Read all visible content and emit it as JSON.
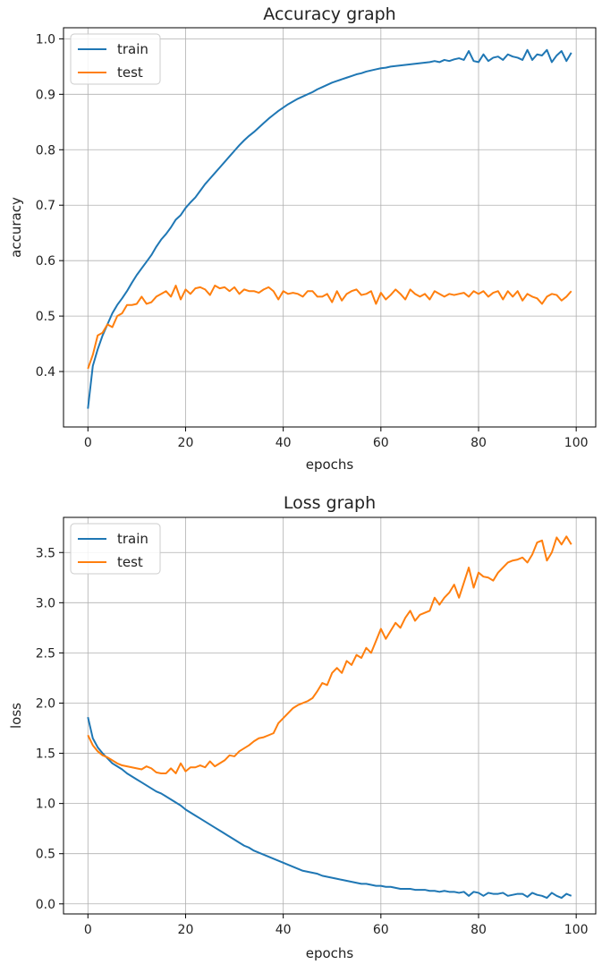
{
  "chart_data": [
    {
      "type": "line",
      "title": "Accuracy graph",
      "xlabel": "epochs",
      "ylabel": "accuracy",
      "xlim": [
        -5,
        104
      ],
      "ylim": [
        0.3,
        1.02
      ],
      "xticks": [
        0,
        20,
        40,
        60,
        80,
        100
      ],
      "xtick_labels": [
        "0",
        "20",
        "40",
        "60",
        "80",
        "100"
      ],
      "yticks": [
        0.4,
        0.5,
        0.6,
        0.7,
        0.8,
        0.9,
        1.0
      ],
      "ytick_labels": [
        "0.4",
        "0.5",
        "0.6",
        "0.7",
        "0.8",
        "0.9",
        "1.0"
      ],
      "grid": true,
      "legend_position": "top-left",
      "series": [
        {
          "name": "train",
          "color": "#1f77b4",
          "x": [
            0,
            1,
            2,
            3,
            4,
            5,
            6,
            7,
            8,
            9,
            10,
            11,
            12,
            13,
            14,
            15,
            16,
            17,
            18,
            19,
            20,
            21,
            22,
            23,
            24,
            25,
            26,
            27,
            28,
            29,
            30,
            31,
            32,
            33,
            34,
            35,
            36,
            37,
            38,
            39,
            40,
            41,
            42,
            43,
            44,
            45,
            46,
            47,
            48,
            49,
            50,
            51,
            52,
            53,
            54,
            55,
            56,
            57,
            58,
            59,
            60,
            61,
            62,
            63,
            64,
            65,
            66,
            67,
            68,
            69,
            70,
            71,
            72,
            73,
            74,
            75,
            76,
            77,
            78,
            79,
            80,
            81,
            82,
            83,
            84,
            85,
            86,
            87,
            88,
            89,
            90,
            91,
            92,
            93,
            94,
            95,
            96,
            97,
            98,
            99
          ],
          "values": [
            0.333,
            0.41,
            0.44,
            0.465,
            0.485,
            0.505,
            0.52,
            0.532,
            0.545,
            0.56,
            0.574,
            0.586,
            0.598,
            0.61,
            0.625,
            0.638,
            0.648,
            0.66,
            0.674,
            0.682,
            0.695,
            0.705,
            0.714,
            0.726,
            0.738,
            0.748,
            0.758,
            0.768,
            0.778,
            0.788,
            0.798,
            0.808,
            0.817,
            0.825,
            0.832,
            0.84,
            0.848,
            0.856,
            0.863,
            0.87,
            0.876,
            0.882,
            0.887,
            0.892,
            0.896,
            0.9,
            0.904,
            0.909,
            0.913,
            0.917,
            0.921,
            0.924,
            0.927,
            0.93,
            0.933,
            0.936,
            0.938,
            0.941,
            0.943,
            0.945,
            0.947,
            0.948,
            0.95,
            0.951,
            0.952,
            0.953,
            0.954,
            0.955,
            0.956,
            0.957,
            0.958,
            0.96,
            0.958,
            0.962,
            0.96,
            0.963,
            0.965,
            0.962,
            0.978,
            0.96,
            0.958,
            0.972,
            0.96,
            0.966,
            0.968,
            0.962,
            0.972,
            0.968,
            0.966,
            0.962,
            0.98,
            0.962,
            0.972,
            0.97,
            0.98,
            0.958,
            0.97,
            0.978,
            0.96,
            0.975
          ]
        },
        {
          "name": "test",
          "color": "#ff7f0e",
          "x": [
            0,
            1,
            2,
            3,
            4,
            5,
            6,
            7,
            8,
            9,
            10,
            11,
            12,
            13,
            14,
            15,
            16,
            17,
            18,
            19,
            20,
            21,
            22,
            23,
            24,
            25,
            26,
            27,
            28,
            29,
            30,
            31,
            32,
            33,
            34,
            35,
            36,
            37,
            38,
            39,
            40,
            41,
            42,
            43,
            44,
            45,
            46,
            47,
            48,
            49,
            50,
            51,
            52,
            53,
            54,
            55,
            56,
            57,
            58,
            59,
            60,
            61,
            62,
            63,
            64,
            65,
            66,
            67,
            68,
            69,
            70,
            71,
            72,
            73,
            74,
            75,
            76,
            77,
            78,
            79,
            80,
            81,
            82,
            83,
            84,
            85,
            86,
            87,
            88,
            89,
            90,
            91,
            92,
            93,
            94,
            95,
            96,
            97,
            98,
            99
          ],
          "values": [
            0.405,
            0.43,
            0.465,
            0.47,
            0.485,
            0.48,
            0.5,
            0.505,
            0.52,
            0.52,
            0.522,
            0.535,
            0.522,
            0.525,
            0.535,
            0.54,
            0.545,
            0.535,
            0.555,
            0.53,
            0.548,
            0.54,
            0.55,
            0.552,
            0.548,
            0.538,
            0.555,
            0.55,
            0.552,
            0.545,
            0.552,
            0.54,
            0.548,
            0.545,
            0.545,
            0.542,
            0.548,
            0.552,
            0.545,
            0.53,
            0.545,
            0.54,
            0.542,
            0.54,
            0.535,
            0.545,
            0.545,
            0.535,
            0.535,
            0.54,
            0.525,
            0.545,
            0.528,
            0.54,
            0.545,
            0.548,
            0.538,
            0.54,
            0.545,
            0.522,
            0.542,
            0.53,
            0.538,
            0.548,
            0.54,
            0.53,
            0.548,
            0.54,
            0.535,
            0.54,
            0.53,
            0.545,
            0.54,
            0.535,
            0.54,
            0.538,
            0.54,
            0.542,
            0.535,
            0.545,
            0.54,
            0.545,
            0.535,
            0.542,
            0.545,
            0.53,
            0.545,
            0.535,
            0.545,
            0.528,
            0.54,
            0.535,
            0.532,
            0.522,
            0.535,
            0.54,
            0.538,
            0.528,
            0.535,
            0.545
          ]
        }
      ]
    },
    {
      "type": "line",
      "title": "Loss graph",
      "xlabel": "epochs",
      "ylabel": "loss",
      "xlim": [
        -5,
        104
      ],
      "ylim": [
        -0.1,
        3.85
      ],
      "xticks": [
        0,
        20,
        40,
        60,
        80,
        100
      ],
      "xtick_labels": [
        "0",
        "20",
        "40",
        "60",
        "80",
        "100"
      ],
      "yticks": [
        0.0,
        0.5,
        1.0,
        1.5,
        2.0,
        2.5,
        3.0,
        3.5
      ],
      "ytick_labels": [
        "0.0",
        "0.5",
        "1.0",
        "1.5",
        "2.0",
        "2.5",
        "3.0",
        "3.5"
      ],
      "grid": true,
      "legend_position": "top-left",
      "series": [
        {
          "name": "train",
          "color": "#1f77b4",
          "x": [
            0,
            1,
            2,
            3,
            4,
            5,
            6,
            7,
            8,
            9,
            10,
            11,
            12,
            13,
            14,
            15,
            16,
            17,
            18,
            19,
            20,
            21,
            22,
            23,
            24,
            25,
            26,
            27,
            28,
            29,
            30,
            31,
            32,
            33,
            34,
            35,
            36,
            37,
            38,
            39,
            40,
            41,
            42,
            43,
            44,
            45,
            46,
            47,
            48,
            49,
            50,
            51,
            52,
            53,
            54,
            55,
            56,
            57,
            58,
            59,
            60,
            61,
            62,
            63,
            64,
            65,
            66,
            67,
            68,
            69,
            70,
            71,
            72,
            73,
            74,
            75,
            76,
            77,
            78,
            79,
            80,
            81,
            82,
            83,
            84,
            85,
            86,
            87,
            88,
            89,
            90,
            91,
            92,
            93,
            94,
            95,
            96,
            97,
            98,
            99
          ],
          "values": [
            1.86,
            1.65,
            1.56,
            1.5,
            1.45,
            1.4,
            1.37,
            1.34,
            1.3,
            1.27,
            1.24,
            1.21,
            1.18,
            1.15,
            1.12,
            1.1,
            1.07,
            1.04,
            1.01,
            0.98,
            0.94,
            0.91,
            0.88,
            0.85,
            0.82,
            0.79,
            0.76,
            0.73,
            0.7,
            0.67,
            0.64,
            0.61,
            0.58,
            0.56,
            0.53,
            0.51,
            0.49,
            0.47,
            0.45,
            0.43,
            0.41,
            0.39,
            0.37,
            0.35,
            0.33,
            0.32,
            0.31,
            0.3,
            0.28,
            0.27,
            0.26,
            0.25,
            0.24,
            0.23,
            0.22,
            0.21,
            0.2,
            0.2,
            0.19,
            0.18,
            0.18,
            0.17,
            0.17,
            0.16,
            0.15,
            0.15,
            0.15,
            0.14,
            0.14,
            0.14,
            0.13,
            0.13,
            0.12,
            0.13,
            0.12,
            0.12,
            0.11,
            0.12,
            0.08,
            0.12,
            0.11,
            0.08,
            0.11,
            0.1,
            0.1,
            0.11,
            0.08,
            0.09,
            0.1,
            0.1,
            0.07,
            0.11,
            0.09,
            0.08,
            0.06,
            0.11,
            0.08,
            0.06,
            0.1,
            0.08
          ]
        },
        {
          "name": "test",
          "color": "#ff7f0e",
          "x": [
            0,
            1,
            2,
            3,
            4,
            5,
            6,
            7,
            8,
            9,
            10,
            11,
            12,
            13,
            14,
            15,
            16,
            17,
            18,
            19,
            20,
            21,
            22,
            23,
            24,
            25,
            26,
            27,
            28,
            29,
            30,
            31,
            32,
            33,
            34,
            35,
            36,
            37,
            38,
            39,
            40,
            41,
            42,
            43,
            44,
            45,
            46,
            47,
            48,
            49,
            50,
            51,
            52,
            53,
            54,
            55,
            56,
            57,
            58,
            59,
            60,
            61,
            62,
            63,
            64,
            65,
            66,
            67,
            68,
            69,
            70,
            71,
            72,
            73,
            74,
            75,
            76,
            77,
            78,
            79,
            80,
            81,
            82,
            83,
            84,
            85,
            86,
            87,
            88,
            89,
            90,
            91,
            92,
            93,
            94,
            95,
            96,
            97,
            98,
            99
          ],
          "values": [
            1.68,
            1.58,
            1.52,
            1.48,
            1.46,
            1.43,
            1.4,
            1.38,
            1.37,
            1.36,
            1.35,
            1.34,
            1.37,
            1.35,
            1.31,
            1.3,
            1.3,
            1.35,
            1.3,
            1.4,
            1.32,
            1.36,
            1.36,
            1.38,
            1.36,
            1.42,
            1.37,
            1.4,
            1.43,
            1.48,
            1.47,
            1.52,
            1.55,
            1.58,
            1.62,
            1.65,
            1.66,
            1.68,
            1.7,
            1.8,
            1.85,
            1.9,
            1.95,
            1.98,
            2.0,
            2.02,
            2.05,
            2.12,
            2.2,
            2.18,
            2.3,
            2.35,
            2.3,
            2.42,
            2.38,
            2.48,
            2.45,
            2.55,
            2.5,
            2.62,
            2.74,
            2.64,
            2.72,
            2.8,
            2.75,
            2.85,
            2.92,
            2.82,
            2.88,
            2.9,
            2.92,
            3.05,
            2.98,
            3.05,
            3.1,
            3.18,
            3.05,
            3.2,
            3.35,
            3.15,
            3.3,
            3.26,
            3.25,
            3.22,
            3.3,
            3.35,
            3.4,
            3.42,
            3.43,
            3.45,
            3.4,
            3.48,
            3.6,
            3.62,
            3.42,
            3.5,
            3.65,
            3.58,
            3.66,
            3.58
          ]
        }
      ]
    }
  ]
}
